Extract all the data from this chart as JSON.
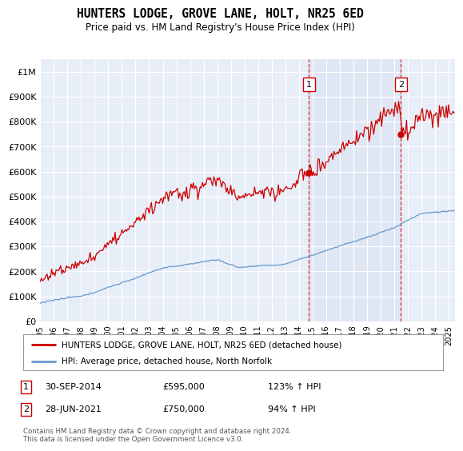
{
  "title": "HUNTERS LODGE, GROVE LANE, HOLT, NR25 6ED",
  "subtitle": "Price paid vs. HM Land Registry's House Price Index (HPI)",
  "ylabel_ticks": [
    "£0",
    "£100K",
    "£200K",
    "£300K",
    "£400K",
    "£500K",
    "£600K",
    "£700K",
    "£800K",
    "£900K",
    "£1M"
  ],
  "ytick_vals": [
    0,
    100000,
    200000,
    300000,
    400000,
    500000,
    600000,
    700000,
    800000,
    900000,
    1000000
  ],
  "ylim": [
    0,
    1050000
  ],
  "xlim_start": 1995.0,
  "xlim_end": 2025.5,
  "line1_color": "#cc0000",
  "line2_color": "#6699cc",
  "background_color": "#ffffff",
  "plot_bg_color": "#e8eef8",
  "grid_color": "#cccccc",
  "sale1_x": 2014.75,
  "sale1_y": 595000,
  "sale2_x": 2021.5,
  "sale2_y": 750000,
  "legend_label1": "HUNTERS LODGE, GROVE LANE, HOLT, NR25 6ED (detached house)",
  "legend_label2": "HPI: Average price, detached house, North Norfolk",
  "note1_label": "1",
  "note1_date": "30-SEP-2014",
  "note1_price": "£595,000",
  "note1_hpi": "123% ↑ HPI",
  "note2_label": "2",
  "note2_date": "28-JUN-2021",
  "note2_price": "£750,000",
  "note2_hpi": "94% ↑ HPI",
  "footer": "Contains HM Land Registry data © Crown copyright and database right 2024.\nThis data is licensed under the Open Government Licence v3.0."
}
